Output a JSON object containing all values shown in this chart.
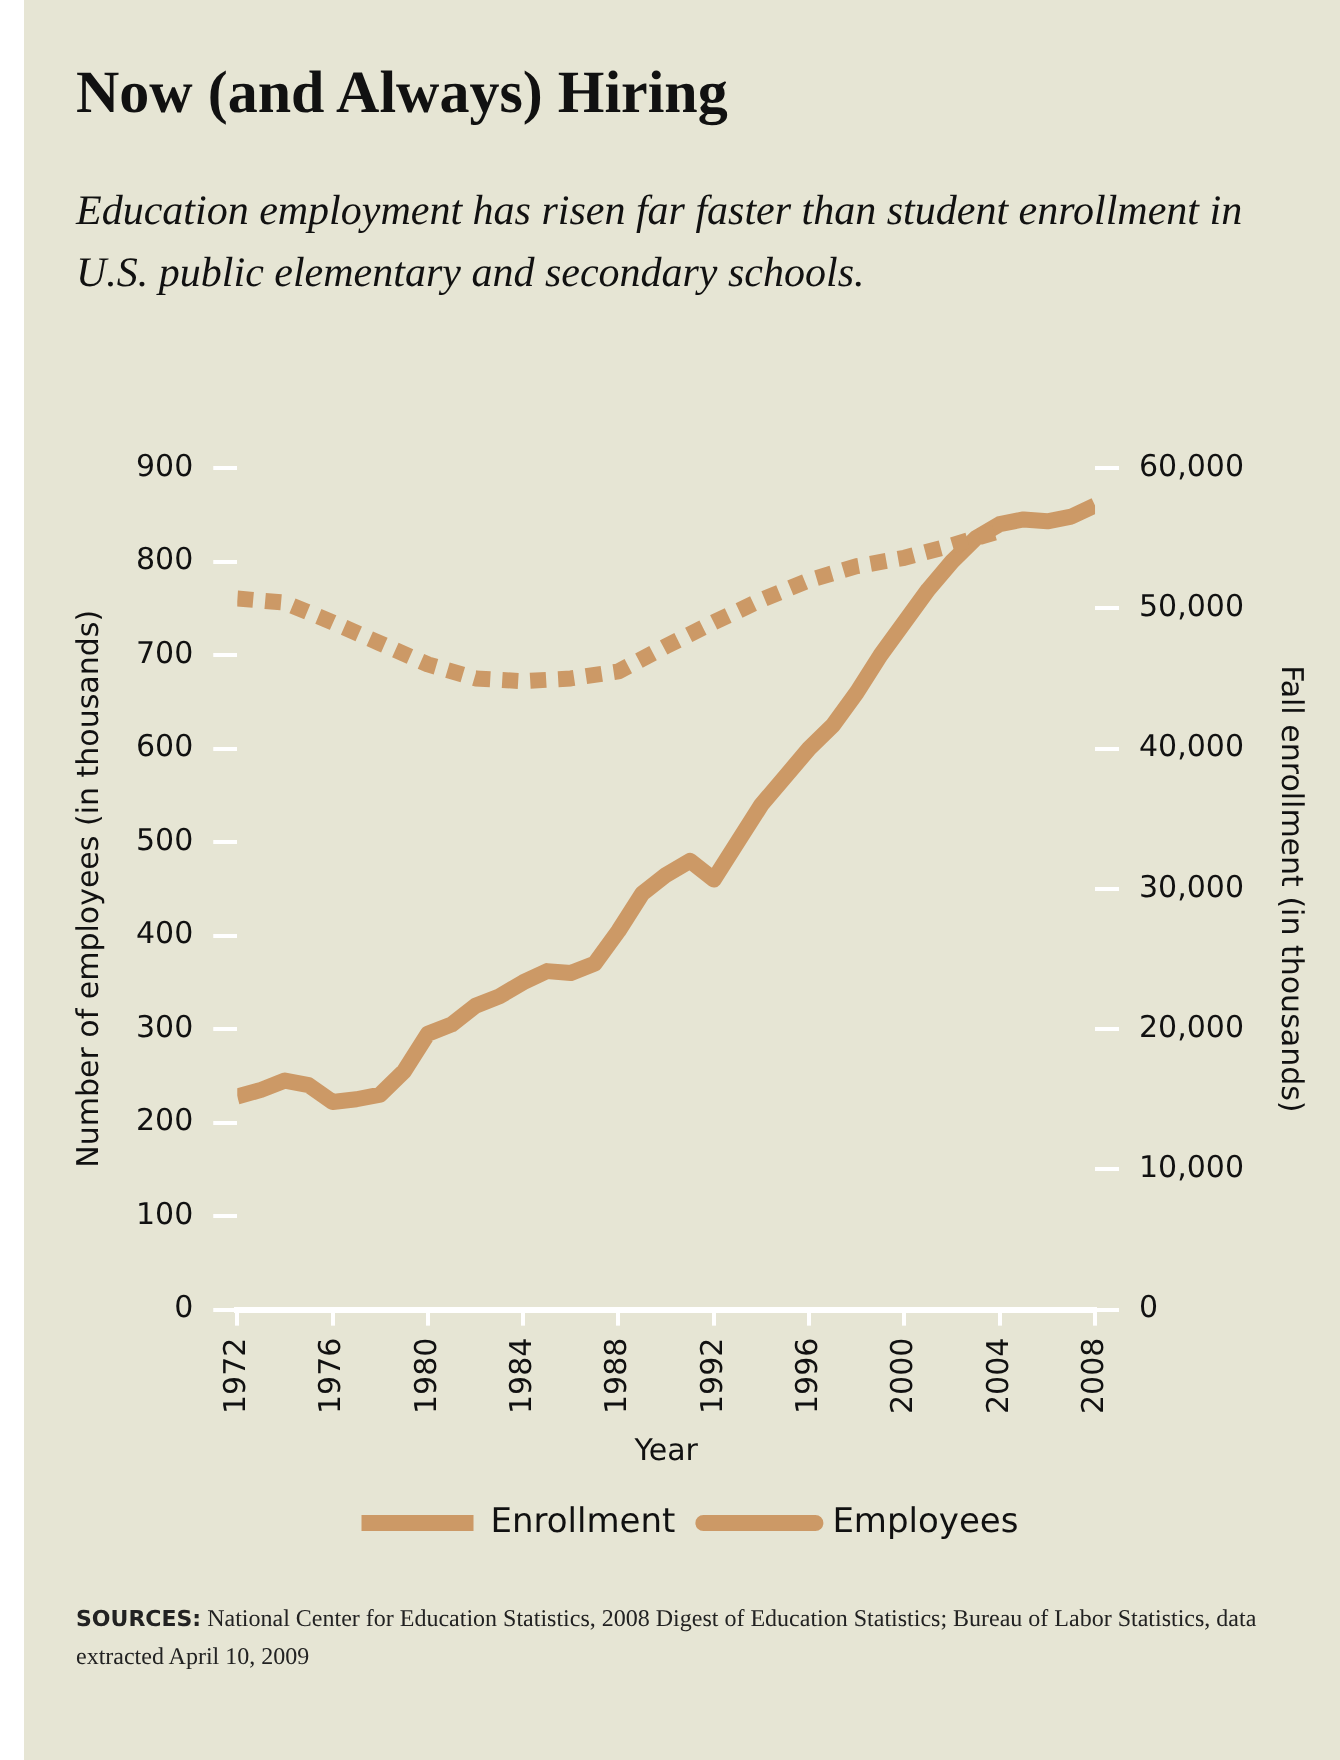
{
  "chart_data": {
    "type": "line",
    "title": "Now (and Always) Hiring",
    "subtitle": "Education employment has risen far faster than student enrollment in U.S. public elementary and secondary schools.",
    "xlabel": "Year",
    "ylabel": "Number of employees (in thousands)",
    "y2label": "Fall enrollment (in thousands)",
    "annotations": [
      "SOURCES: National Center for Education Statistics, 2008 Digest of Education Statistics; Bureau of Labor Statistics, data extracted April 10, 2009"
    ],
    "xlim": [
      1972,
      2008
    ],
    "xticks": [
      1972,
      1976,
      1980,
      1984,
      1988,
      1992,
      1996,
      2000,
      2004,
      2008
    ],
    "ylim": [
      0,
      900
    ],
    "yticks": [
      0,
      100,
      200,
      300,
      400,
      500,
      600,
      700,
      800,
      900
    ],
    "y2lim": [
      0,
      60000
    ],
    "y2ticks": [
      0,
      {
        "value": 10000,
        "label": "10,000"
      },
      {
        "value": 20000,
        "label": "20,000"
      },
      {
        "value": 30000,
        "label": "30,000"
      },
      {
        "value": 40000,
        "label": "40,000"
      },
      {
        "value": 50000,
        "label": "50,000"
      },
      {
        "value": 60000,
        "label": "60,000"
      }
    ],
    "grid": false,
    "legend": "bottom",
    "marker": "none",
    "series": [
      {
        "name": "Enrollment",
        "color": "#cc9966",
        "axis": "y2",
        "line_style": "dotted",
        "x": [
          1972,
          1974,
          1976,
          1978,
          1980,
          1982,
          1984,
          1986,
          1988,
          1990,
          1992,
          1994,
          1996,
          1998,
          2000,
          2002,
          2004
        ],
        "values": [
          50700,
          50400,
          49000,
          47500,
          46000,
          45000,
          44800,
          45000,
          45500,
          47300,
          49000,
          50600,
          52000,
          53000,
          53600,
          54500,
          55500
        ]
      },
      {
        "name": "Employees",
        "color": "#cc9966",
        "axis": "y",
        "line_style": "solid",
        "x": [
          1972,
          1973,
          1974,
          1975,
          1976,
          1977,
          1978,
          1979,
          1980,
          1981,
          1982,
          1983,
          1984,
          1985,
          1986,
          1987,
          1988,
          1989,
          1990,
          1991,
          1992,
          1993,
          1994,
          1995,
          1996,
          1997,
          1998,
          1999,
          2000,
          2001,
          2002,
          2003,
          2004,
          2005,
          2006,
          2007,
          2008
        ],
        "values": [
          228,
          235,
          245,
          240,
          222,
          225,
          230,
          255,
          295,
          305,
          325,
          335,
          350,
          362,
          360,
          370,
          405,
          445,
          465,
          480,
          460,
          500,
          540,
          570,
          600,
          625,
          660,
          700,
          735,
          770,
          800,
          825,
          840,
          845,
          843,
          848,
          860
        ]
      }
    ]
  }
}
